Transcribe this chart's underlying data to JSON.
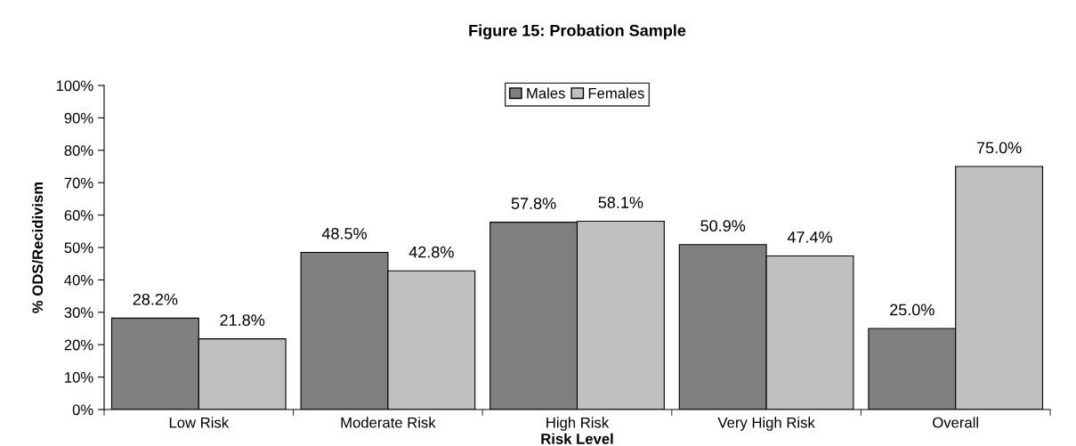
{
  "chart_data": {
    "type": "bar",
    "title": "Figure 15: Probation Sample",
    "xlabel": "Risk Level",
    "ylabel": "% ODS/Recidivism",
    "categories": [
      "Low Risk",
      "Moderate Risk",
      "High Risk",
      "Very High Risk",
      "Overall"
    ],
    "series": [
      {
        "name": "Males",
        "color": "#808080",
        "values": [
          28.2,
          48.5,
          57.8,
          50.9,
          25.0
        ],
        "value_labels": [
          "28.2%",
          "48.5%",
          "57.8%",
          "50.9%",
          "25.0%"
        ]
      },
      {
        "name": "Females",
        "color": "#c0c0c0",
        "values": [
          21.8,
          42.8,
          58.1,
          47.4,
          75.0
        ],
        "value_labels": [
          "21.8%",
          "42.8%",
          "58.1%",
          "47.4%",
          "75.0%"
        ]
      }
    ],
    "ylim": [
      0,
      100
    ],
    "yticks": [
      {
        "value": 0,
        "label": "0%"
      },
      {
        "value": 10,
        "label": "10%"
      },
      {
        "value": 20,
        "label": "20%"
      },
      {
        "value": 30,
        "label": "30%"
      },
      {
        "value": 40,
        "label": "40%"
      },
      {
        "value": 50,
        "label": "50%"
      },
      {
        "value": 60,
        "label": "60%"
      },
      {
        "value": 70,
        "label": "70%"
      },
      {
        "value": 80,
        "label": "80%"
      },
      {
        "value": 90,
        "label": "90%"
      },
      {
        "value": 100,
        "label": "100%"
      }
    ],
    "grid": false,
    "legend": "top"
  }
}
